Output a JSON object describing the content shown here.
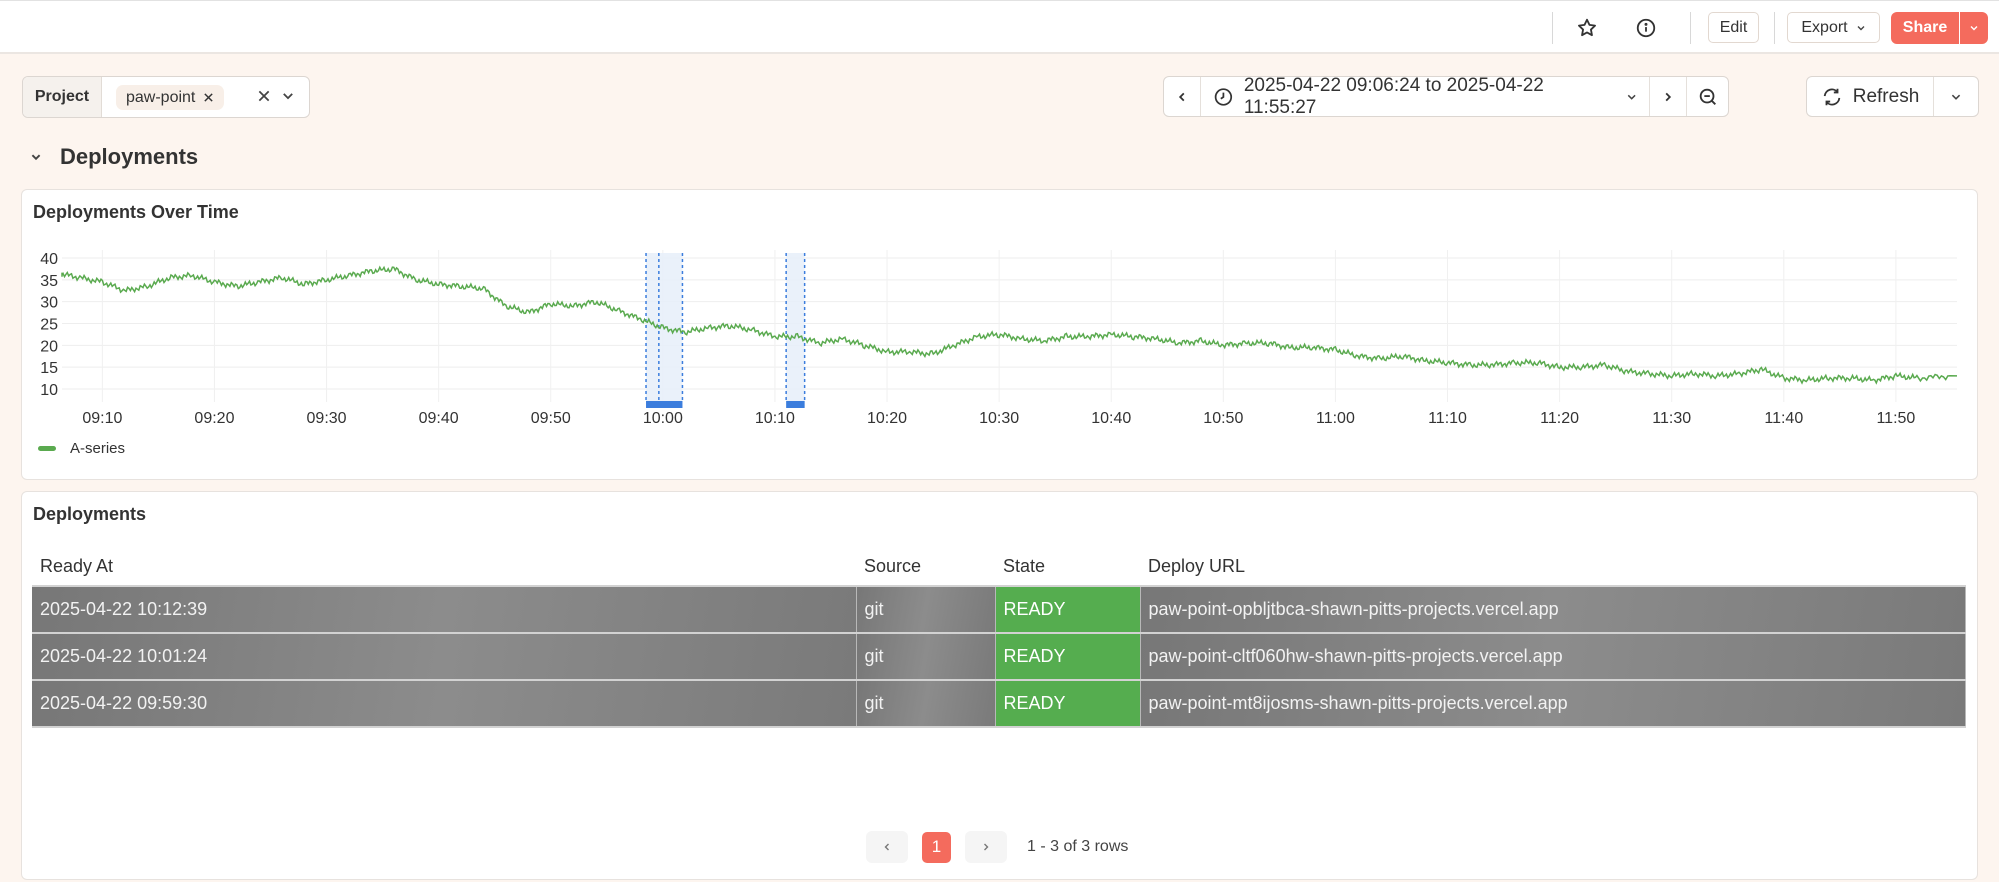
{
  "toolbar": {
    "star_icon": "star-icon",
    "info_icon": "info-icon",
    "edit_label": "Edit",
    "export_label": "Export",
    "share_label": "Share"
  },
  "filter": {
    "label": "Project",
    "chip_value": "paw-point"
  },
  "time_range": {
    "label": "2025-04-22 09:06:24 to 2025-04-22 11:55:27",
    "refresh_label": "Refresh"
  },
  "section": {
    "title": "Deployments"
  },
  "chart_panel": {
    "title": "Deployments Over Time",
    "legend": "A-series",
    "series_color": "#5aaa4f",
    "annotation_color": "#3b7ddd"
  },
  "chart_data": {
    "type": "line",
    "title": "Deployments Over Time",
    "xlabel": "",
    "ylabel": "",
    "x_ticks": [
      "09:10",
      "09:20",
      "09:30",
      "09:40",
      "09:50",
      "10:00",
      "10:10",
      "10:20",
      "10:30",
      "10:40",
      "10:50",
      "11:00",
      "11:10",
      "11:20",
      "11:30",
      "11:40",
      "11:50"
    ],
    "y_ticks": [
      10,
      15,
      20,
      25,
      30,
      35,
      40
    ],
    "ylim": [
      8,
      40
    ],
    "grid": true,
    "legend_position": "bottom-left",
    "series": [
      {
        "name": "A-series",
        "x": [
          "09:06",
          "09:08",
          "09:10",
          "09:12",
          "09:14",
          "09:16",
          "09:18",
          "09:20",
          "09:22",
          "09:24",
          "09:26",
          "09:28",
          "09:30",
          "09:32",
          "09:34",
          "09:36",
          "09:38",
          "09:40",
          "09:42",
          "09:44",
          "09:46",
          "09:48",
          "09:50",
          "09:52",
          "09:54",
          "09:56",
          "09:58",
          "10:00",
          "10:02",
          "10:04",
          "10:06",
          "10:08",
          "10:10",
          "10:12",
          "10:14",
          "10:16",
          "10:18",
          "10:20",
          "10:22",
          "10:24",
          "10:26",
          "10:28",
          "10:30",
          "10:32",
          "10:34",
          "10:36",
          "10:38",
          "10:40",
          "10:42",
          "10:44",
          "10:46",
          "10:48",
          "10:50",
          "10:52",
          "10:54",
          "10:56",
          "10:58",
          "11:00",
          "11:02",
          "11:04",
          "11:06",
          "11:08",
          "11:10",
          "11:12",
          "11:14",
          "11:16",
          "11:18",
          "11:20",
          "11:22",
          "11:24",
          "11:26",
          "11:28",
          "11:30",
          "11:32",
          "11:34",
          "11:36",
          "11:38",
          "11:40",
          "11:42",
          "11:44",
          "11:46",
          "11:48",
          "11:50",
          "11:52",
          "11:55"
        ],
        "values": [
          36.5,
          35.5,
          34.5,
          32.5,
          33.5,
          35.5,
          36,
          34.5,
          33.5,
          34.5,
          35.5,
          34,
          35,
          36,
          37,
          37.5,
          35,
          34,
          33.5,
          33,
          29,
          27.5,
          29.5,
          29,
          30,
          28,
          26,
          24,
          23,
          24,
          24.5,
          23.5,
          22,
          22,
          20.5,
          21.5,
          20,
          18.5,
          18.5,
          18,
          20,
          22,
          22.5,
          21.5,
          21,
          22,
          22,
          22.5,
          22,
          21.5,
          20.5,
          21,
          20,
          20.5,
          20.5,
          19.5,
          19.5,
          19,
          17.5,
          17,
          17.5,
          16.5,
          16,
          15.5,
          15.5,
          16,
          16,
          15,
          15,
          15.5,
          14,
          13.5,
          13,
          13.5,
          13,
          13.5,
          14.5,
          12.5,
          12,
          12.5,
          12.5,
          12,
          13,
          12.5,
          13
        ]
      }
    ],
    "annotations": [
      {
        "type": "region",
        "start": "09:58:30",
        "end": "10:01:45",
        "marker": "10:00:00"
      },
      {
        "type": "region",
        "start": "10:11:00",
        "end": "10:12:39"
      }
    ]
  },
  "table_panel": {
    "title": "Deployments",
    "columns": [
      "Ready At",
      "Source",
      "State",
      "Deploy URL"
    ],
    "rows": [
      [
        "2025-04-22 10:12:39",
        "git",
        "READY",
        "paw-point-opbljtbca-shawn-pitts-projects.vercel.app"
      ],
      [
        "2025-04-22 10:01:24",
        "git",
        "READY",
        "paw-point-cltf060hw-shawn-pitts-projects.vercel.app"
      ],
      [
        "2025-04-22 09:59:30",
        "git",
        "READY",
        "paw-point-mt8ijosms-shawn-pitts-projects.vercel.app"
      ]
    ],
    "state_color": "#55ad4f"
  },
  "pagination": {
    "current_page": "1",
    "info": "1 - 3 of 3 rows"
  }
}
